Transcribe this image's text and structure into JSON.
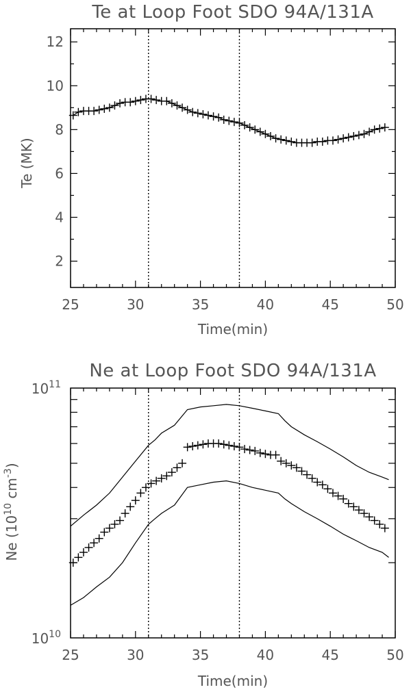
{
  "chart_data": [
    {
      "type": "scatter",
      "title": "Te at Loop Foot SDO 94A/131A",
      "xlabel": "Time(min)",
      "ylabel": "Te (MK)",
      "xlim": [
        25,
        50
      ],
      "ylim": [
        0.8,
        12.6
      ],
      "xticks": [
        25,
        30,
        35,
        40,
        45,
        50
      ],
      "yticks": [
        2,
        4,
        6,
        8,
        10,
        12
      ],
      "vlines": [
        31,
        38
      ],
      "series": [
        {
          "style": "line-with-plus-markers",
          "x": [
            25.2,
            25.6,
            26,
            26.4,
            26.8,
            27.2,
            27.6,
            28,
            28.4,
            28.8,
            29.2,
            29.6,
            30,
            30.4,
            30.8,
            31.2,
            31.6,
            32,
            32.4,
            32.8,
            33.2,
            33.6,
            34,
            34.4,
            34.8,
            35.2,
            35.6,
            36,
            36.4,
            36.8,
            37.2,
            37.6,
            38,
            38.4,
            38.8,
            39.2,
            39.6,
            40,
            40.4,
            40.8,
            41.2,
            41.6,
            42,
            42.4,
            42.8,
            43.2,
            43.6,
            44,
            44.4,
            44.8,
            45.2,
            45.6,
            46,
            46.4,
            46.8,
            47.2,
            47.6,
            48,
            48.4,
            48.8,
            49.2
          ],
          "y": [
            8.65,
            8.8,
            8.85,
            8.85,
            8.85,
            8.9,
            8.95,
            9.0,
            9.1,
            9.2,
            9.25,
            9.25,
            9.3,
            9.35,
            9.4,
            9.4,
            9.35,
            9.3,
            9.3,
            9.2,
            9.1,
            9.0,
            8.9,
            8.8,
            8.75,
            8.7,
            8.65,
            8.6,
            8.55,
            8.45,
            8.4,
            8.35,
            8.3,
            8.2,
            8.1,
            8.0,
            7.9,
            7.8,
            7.7,
            7.6,
            7.55,
            7.5,
            7.45,
            7.4,
            7.4,
            7.4,
            7.4,
            7.45,
            7.45,
            7.5,
            7.5,
            7.55,
            7.6,
            7.65,
            7.7,
            7.75,
            7.8,
            7.9,
            8.0,
            8.05,
            8.1
          ]
        }
      ]
    },
    {
      "type": "scatter",
      "title": "Ne at Loop Foot SDO 94A/131A",
      "xlabel": "Time(min)",
      "ylabel_main": "Ne (10",
      "ylabel_sup": "10",
      "ylabel_mid": " cm",
      "ylabel_sup2": "-3",
      "ylabel_end": ")",
      "y_scale": "log",
      "xlim": [
        25,
        50
      ],
      "ylim": [
        10000000000.0,
        100000000000.0
      ],
      "xticks": [
        25,
        30,
        35,
        40,
        45,
        50
      ],
      "ytick_labels": [
        {
          "base": "10",
          "exp": "10",
          "value": 10000000000.0
        },
        {
          "base": "10",
          "exp": "11",
          "value": 100000000000.0
        }
      ],
      "vlines": [
        31,
        38
      ],
      "series": [
        {
          "style": "plus-markers",
          "x": [
            25.2,
            25.6,
            26,
            26.4,
            26.8,
            27.2,
            27.6,
            28,
            28.4,
            28.8,
            29.2,
            29.6,
            30,
            30.4,
            30.8,
            31.2,
            31.6,
            32,
            32.4,
            32.8,
            33.2,
            33.6,
            34,
            34.4,
            34.8,
            35.2,
            35.6,
            36,
            36.4,
            36.8,
            37.2,
            37.6,
            38,
            38.4,
            38.8,
            39.2,
            39.6,
            40,
            40.4,
            40.8,
            41.2,
            41.6,
            42,
            42.4,
            42.8,
            43.2,
            43.6,
            44,
            44.4,
            44.8,
            45.2,
            45.6,
            46,
            46.4,
            46.8,
            47.2,
            47.6,
            48,
            48.4,
            48.8,
            49.2
          ],
          "y": [
            20000000000.0,
            21000000000.0,
            22000000000.0,
            23000000000.0,
            24000000000.0,
            25000000000.0,
            26500000000.0,
            27500000000.0,
            28500000000.0,
            29500000000.0,
            31500000000.0,
            33500000000.0,
            35500000000.0,
            38000000000.0,
            40000000000.0,
            41500000000.0,
            42500000000.0,
            43500000000.0,
            44500000000.0,
            46000000000.0,
            48000000000.0,
            50000000000.0,
            58000000000.0,
            58500000000.0,
            59000000000.0,
            59500000000.0,
            60000000000.0,
            60000000000.0,
            60000000000.0,
            59500000000.0,
            59000000000.0,
            58500000000.0,
            58000000000.0,
            57000000000.0,
            56500000000.0,
            56000000000.0,
            55000000000.0,
            54500000000.0,
            54000000000.0,
            54000000000.0,
            51000000000.0,
            50000000000.0,
            49000000000.0,
            48000000000.0,
            46500000000.0,
            45000000000.0,
            43500000000.0,
            42000000000.0,
            41000000000.0,
            39500000000.0,
            38000000000.0,
            37000000000.0,
            36000000000.0,
            34500000000.0,
            33500000000.0,
            32500000000.0,
            31500000000.0,
            30500000000.0,
            29500000000.0,
            28500000000.0,
            27500000000.0
          ]
        },
        {
          "style": "line",
          "x": [
            25,
            26,
            27,
            28,
            29,
            30,
            31,
            31.5,
            32,
            33,
            34,
            35,
            36,
            37,
            38,
            39,
            40,
            41,
            41.5,
            42,
            43,
            44,
            45,
            46,
            47,
            48,
            49,
            49.5
          ],
          "y": [
            28000000000.0,
            31000000000.0,
            34000000000.0,
            38000000000.0,
            44000000000.0,
            51000000000.0,
            59000000000.0,
            62000000000.0,
            66000000000.0,
            71000000000.0,
            82000000000.0,
            84000000000.0,
            85000000000.0,
            86000000000.0,
            85000000000.0,
            83000000000.0,
            81000000000.0,
            79000000000.0,
            74000000000.0,
            70000000000.0,
            65000000000.0,
            61000000000.0,
            57000000000.0,
            53000000000.0,
            49000000000.0,
            46000000000.0,
            44000000000.0,
            43000000000.0
          ]
        },
        {
          "style": "line",
          "x": [
            25,
            26,
            27,
            28,
            29,
            30,
            31,
            31.5,
            32,
            33,
            34,
            35,
            36,
            37,
            38,
            39,
            40,
            41,
            41.5,
            42,
            43,
            44,
            45,
            46,
            47,
            48,
            49,
            49.5
          ],
          "y": [
            13500000000.0,
            14500000000.0,
            16000000000.0,
            17500000000.0,
            20000000000.0,
            24000000000.0,
            28500000000.0,
            30000000000.0,
            31500000000.0,
            34000000000.0,
            40000000000.0,
            41000000000.0,
            42000000000.0,
            42500000000.0,
            41500000000.0,
            40000000000.0,
            39000000000.0,
            38000000000.0,
            36000000000.0,
            34500000000.0,
            32000000000.0,
            30000000000.0,
            28000000000.0,
            26000000000.0,
            24500000000.0,
            23000000000.0,
            22000000000.0,
            21000000000.0
          ]
        }
      ]
    }
  ]
}
